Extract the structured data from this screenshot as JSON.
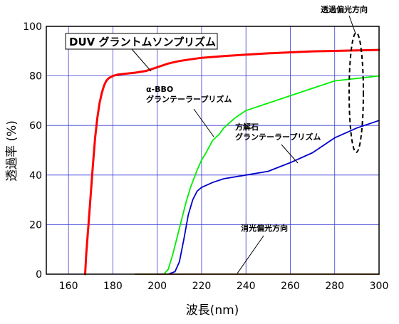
{
  "chart_data": {
    "type": "line",
    "xlabel": "波長(nm)",
    "ylabel": "透過率 (%)",
    "xlim": [
      150,
      300
    ],
    "ylim": [
      0,
      100
    ],
    "x_ticks": [
      "160",
      "180",
      "200",
      "220",
      "240",
      "260",
      "280",
      "300"
    ],
    "y_ticks": [
      "0",
      "20",
      "40",
      "60",
      "80",
      "100"
    ],
    "grid": true,
    "series": [
      {
        "name": "DUV グラントムソンプリズム",
        "color": "#ff0000",
        "x": [
          167.5,
          168,
          169,
          170,
          171,
          172,
          173,
          174,
          175,
          176,
          177,
          178,
          180,
          182,
          185,
          190,
          195,
          200,
          205,
          210,
          215,
          220,
          230,
          240,
          250,
          260,
          270,
          280,
          290,
          300
        ],
        "y": [
          0,
          8,
          20,
          32,
          44,
          55,
          63,
          69,
          73,
          76,
          78,
          79,
          80,
          80.5,
          80.8,
          81.3,
          82,
          83.5,
          85,
          86,
          86.7,
          87.3,
          88,
          88.6,
          89.1,
          89.5,
          89.9,
          90.1,
          90.3,
          90.5
        ]
      },
      {
        "name": "α-BBO グランテーラープリズム",
        "color": "#00ee00",
        "x": [
          190,
          200,
          203,
          205,
          207,
          209,
          211,
          213,
          215,
          218,
          220,
          222,
          225,
          228,
          230,
          235,
          240,
          250,
          260,
          270,
          280,
          290,
          300
        ],
        "y": [
          0,
          0,
          0,
          2,
          8,
          15,
          22,
          29,
          35,
          42,
          46,
          49,
          54,
          56.5,
          59,
          63,
          66,
          69,
          72,
          75,
          78,
          79,
          80
        ]
      },
      {
        "name": "方解石 グランテーラープリズム",
        "color": "#0000cc",
        "x": [
          200,
          205,
          208,
          210,
          212,
          214,
          216,
          218,
          220,
          225,
          230,
          240,
          250,
          260,
          270,
          280,
          290,
          300
        ],
        "y": [
          0,
          0,
          1,
          5,
          14,
          24,
          30,
          33.5,
          35,
          37,
          38.5,
          40,
          41.5,
          45,
          49,
          55,
          59,
          62
        ]
      },
      {
        "name": "消光偏光方向",
        "color": "#cc6600",
        "x": [
          190,
          300
        ],
        "y": [
          0,
          0
        ]
      }
    ],
    "annotations": {
      "duv": "DUV グラントムソンプリズム",
      "bbo_line1": "α-BBO",
      "bbo_line2": "グランテーラープリズム",
      "calcite_line1": "方解石",
      "calcite_line2": "グランテーラープリズム",
      "extinction": "消光偏光方向",
      "transmission": "透過偏光方向"
    }
  }
}
